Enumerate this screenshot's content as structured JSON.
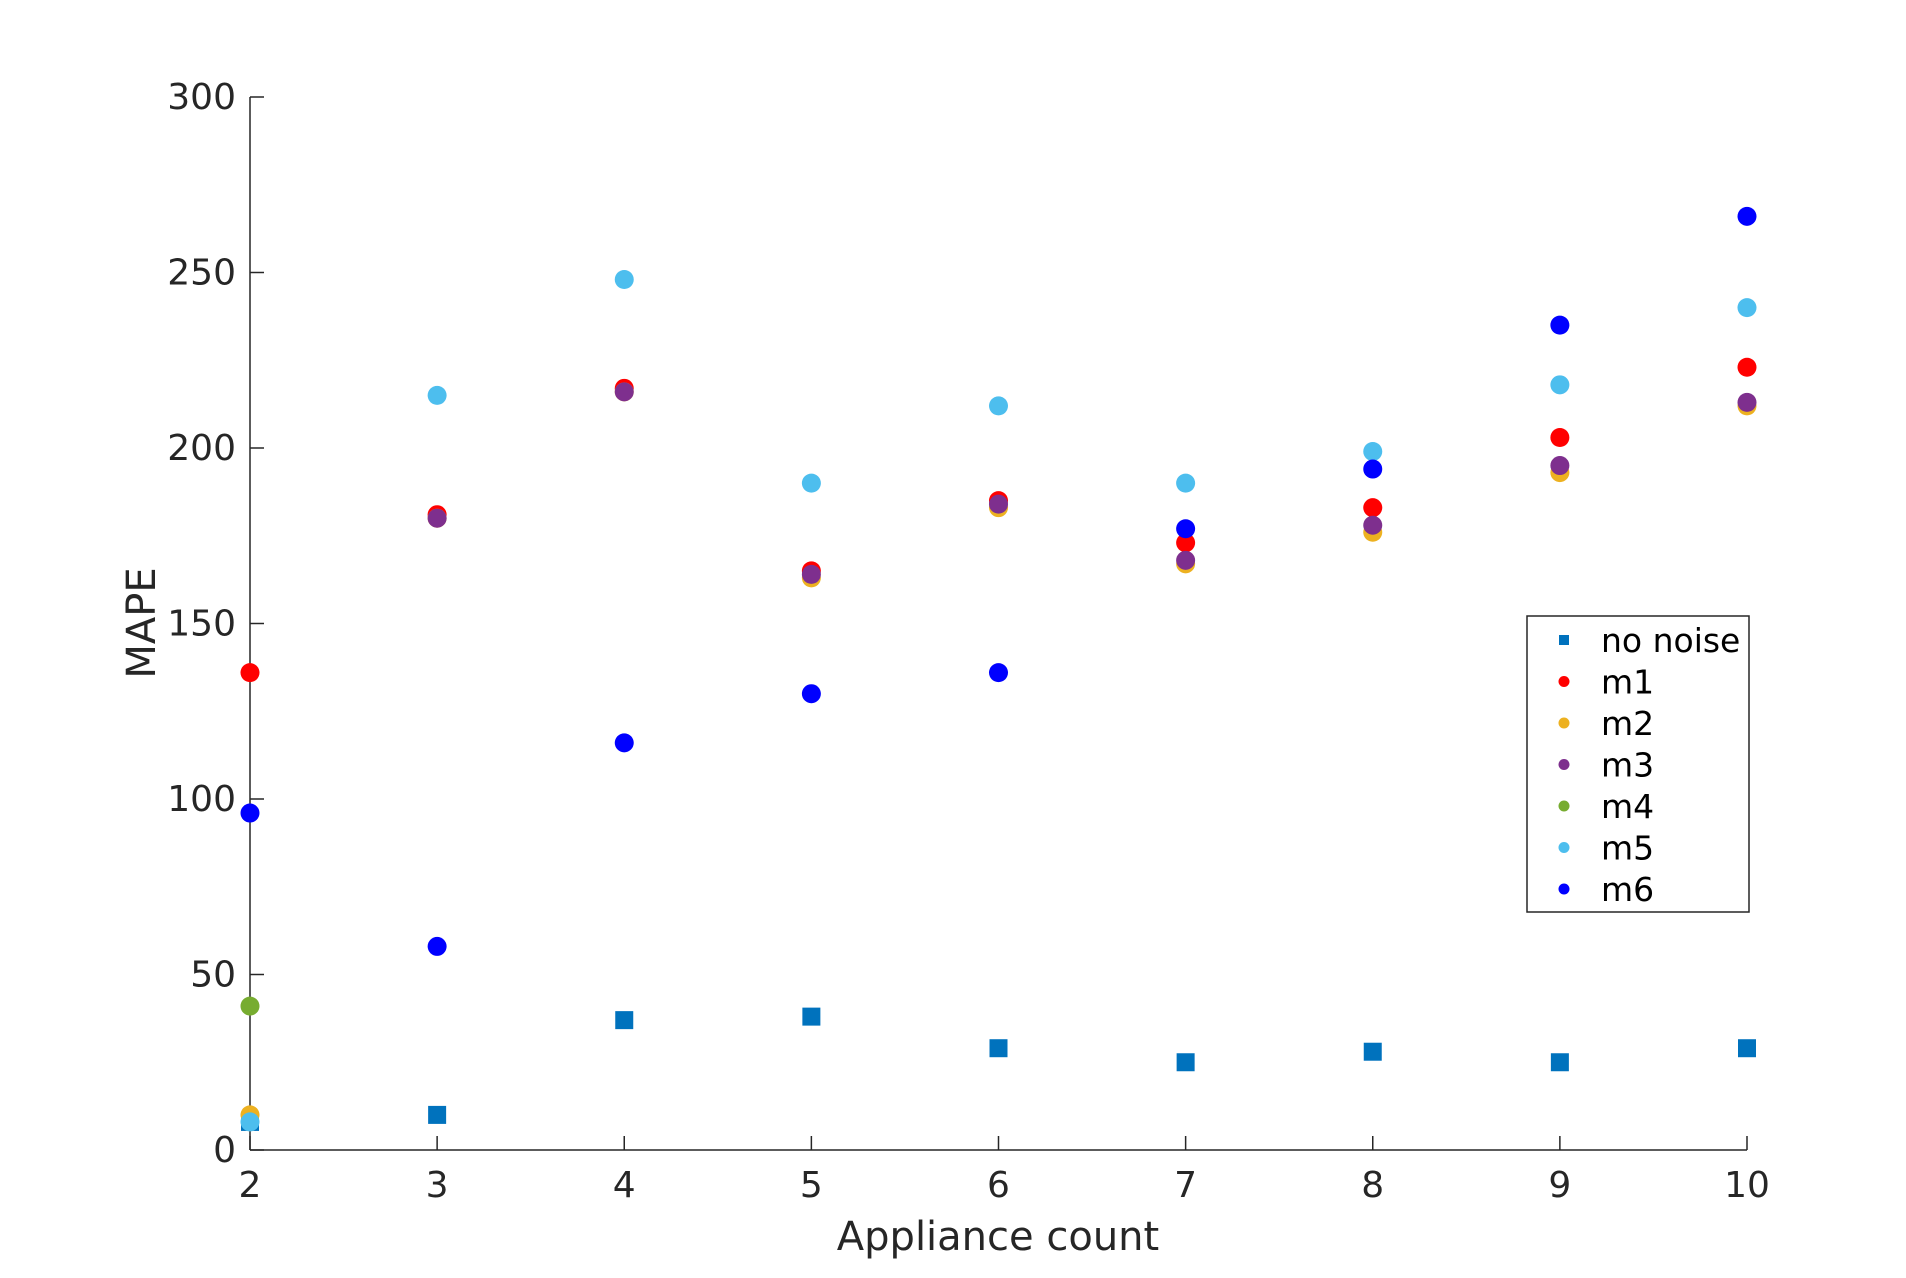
{
  "chart_data": {
    "type": "scatter",
    "title": "",
    "xlabel": "Appliance count",
    "ylabel": "MAPE",
    "xlim": [
      2,
      10
    ],
    "ylim": [
      0,
      300
    ],
    "xticks": [
      "2",
      "3",
      "4",
      "5",
      "6",
      "7",
      "8",
      "9",
      "10"
    ],
    "yticks": [
      "0",
      "50",
      "100",
      "150",
      "200",
      "250",
      "300"
    ],
    "grid": false,
    "legend_position": "right",
    "x": [
      2,
      3,
      4,
      5,
      6,
      7,
      8,
      9,
      10
    ],
    "series": [
      {
        "name": "no noise",
        "marker": "square",
        "color": "#0072BD",
        "values": [
          8,
          10,
          37,
          38,
          29,
          25,
          28,
          25,
          29
        ]
      },
      {
        "name": "m1",
        "marker": "circle",
        "color": "#FF0000",
        "values": [
          136,
          181,
          217,
          165,
          185,
          173,
          183,
          203,
          223
        ]
      },
      {
        "name": "m2",
        "marker": "circle",
        "color": "#EDB120",
        "values": [
          10,
          180,
          216,
          163,
          183,
          167,
          176,
          193,
          212
        ]
      },
      {
        "name": "m3",
        "marker": "circle",
        "color": "#7E2F8E",
        "values": [
          null,
          180,
          216,
          164,
          184,
          168,
          178,
          195,
          213
        ]
      },
      {
        "name": "m4",
        "marker": "circle",
        "color": "#77AC30",
        "values": [
          41,
          null,
          null,
          null,
          null,
          null,
          null,
          null,
          null
        ]
      },
      {
        "name": "m5",
        "marker": "circle",
        "color": "#4DBEEE",
        "values": [
          8,
          215,
          248,
          190,
          212,
          190,
          199,
          218,
          240
        ]
      },
      {
        "name": "m6",
        "marker": "circle",
        "color": "#0000FF",
        "values": [
          96,
          58,
          116,
          130,
          136,
          177,
          194,
          235,
          266
        ]
      }
    ]
  }
}
